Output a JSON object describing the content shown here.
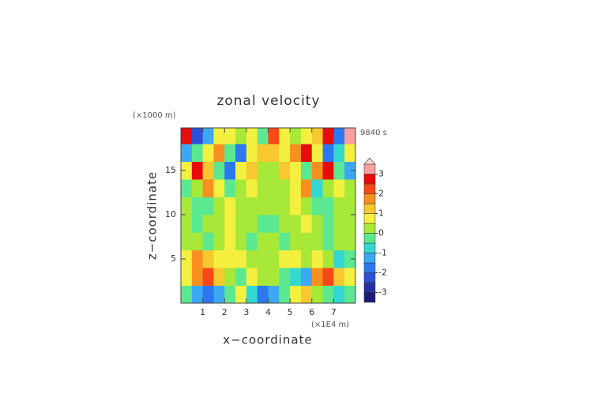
{
  "chart_data": {
    "type": "contour",
    "title": "zonal velocity",
    "x_label": "x−coordinate",
    "y_label": "z−coordinate",
    "x_unit_note": "(×1E4 m)",
    "y_unit_note": "(×1000 m)",
    "time_label": "9840 s",
    "x": [
      0.25,
      0.75,
      1.25,
      1.75,
      2.25,
      2.75,
      3.25,
      3.75,
      4.25,
      4.75,
      5.25,
      5.75,
      6.25,
      6.75,
      7.25,
      7.75
    ],
    "y": [
      1,
      3,
      5,
      7,
      9,
      11,
      13,
      15,
      17,
      19
    ],
    "z": [
      [
        -0.5,
        -1.5,
        -2,
        -1.5,
        -0.5,
        0.5,
        -1,
        -2,
        -1.5,
        -0.5,
        0.5,
        1,
        0,
        -0.5,
        -1,
        -0.5
      ],
      [
        0.5,
        1.5,
        2,
        1,
        0,
        -0.5,
        0.5,
        0,
        0,
        -0.5,
        -1,
        -1.5,
        1.5,
        2,
        1,
        0.5
      ],
      [
        0.5,
        1.5,
        1,
        0.5,
        0.5,
        0.5,
        0.3,
        0.3,
        0.3,
        0.5,
        0.5,
        0.3,
        0.5,
        0,
        -1,
        -0.5
      ],
      [
        0.3,
        0,
        -0.2,
        0.3,
        0.5,
        0.3,
        -0.2,
        0.3,
        0.3,
        -0.2,
        0,
        0.3,
        0,
        -0.2,
        0.3,
        0.3
      ],
      [
        0.3,
        -0.2,
        0.3,
        0.3,
        0.5,
        0.3,
        0.3,
        -0.2,
        -0.2,
        0.3,
        0.3,
        0.5,
        0.3,
        -0.2,
        0.3,
        0.3
      ],
      [
        0.3,
        -0.2,
        -0.2,
        0.3,
        0.5,
        0.3,
        0.3,
        0.3,
        0.3,
        0.3,
        0.5,
        0.3,
        -0.5,
        -0.2,
        0.3,
        0.3
      ],
      [
        -0.5,
        0.3,
        1.5,
        0.5,
        -0.5,
        0.3,
        0.5,
        0.3,
        0.3,
        0.3,
        0.5,
        1.5,
        -1,
        0.3,
        0.5,
        0.3
      ],
      [
        0.5,
        2.5,
        1,
        -0.5,
        -2,
        0.5,
        1,
        0.3,
        0.3,
        1,
        0.5,
        -0.5,
        1.5,
        2.5,
        -0.5,
        -1.5
      ],
      [
        -1.5,
        -0.5,
        0.5,
        1.5,
        -0.5,
        -2,
        0.5,
        1,
        1,
        0.5,
        1.5,
        2.5,
        0.5,
        -2,
        -1,
        0.5
      ],
      [
        2.5,
        -2.5,
        -1.5,
        0.5,
        0.5,
        0.3,
        0.5,
        -0.5,
        2,
        0.5,
        0.3,
        0.5,
        1,
        2.5,
        -2,
        3.3
      ]
    ],
    "xlim": [
      0,
      8
    ],
    "ylim": [
      0,
      19.8
    ],
    "xticks": [
      1,
      2,
      3,
      4,
      5,
      6,
      7
    ],
    "yticks": [
      5,
      10,
      15
    ],
    "colorbar": {
      "levels": [
        -3.5,
        -3,
        -2.5,
        -2,
        -1.5,
        -1,
        -0.5,
        0,
        0.5,
        1,
        1.5,
        2,
        2.5,
        3,
        3.5
      ],
      "colors": [
        "#1c1c78",
        "#2430a8",
        "#2c50d8",
        "#2c78f0",
        "#3ca8f4",
        "#34d8d0",
        "#5ce890",
        "#a8e838",
        "#f4f040",
        "#f8c830",
        "#f89020",
        "#f84818",
        "#e80c0c",
        "#f8a0a0"
      ],
      "over_color": "#fcd8d8",
      "ticks": [
        -3,
        -2,
        -1,
        0,
        1,
        2,
        3
      ]
    }
  }
}
